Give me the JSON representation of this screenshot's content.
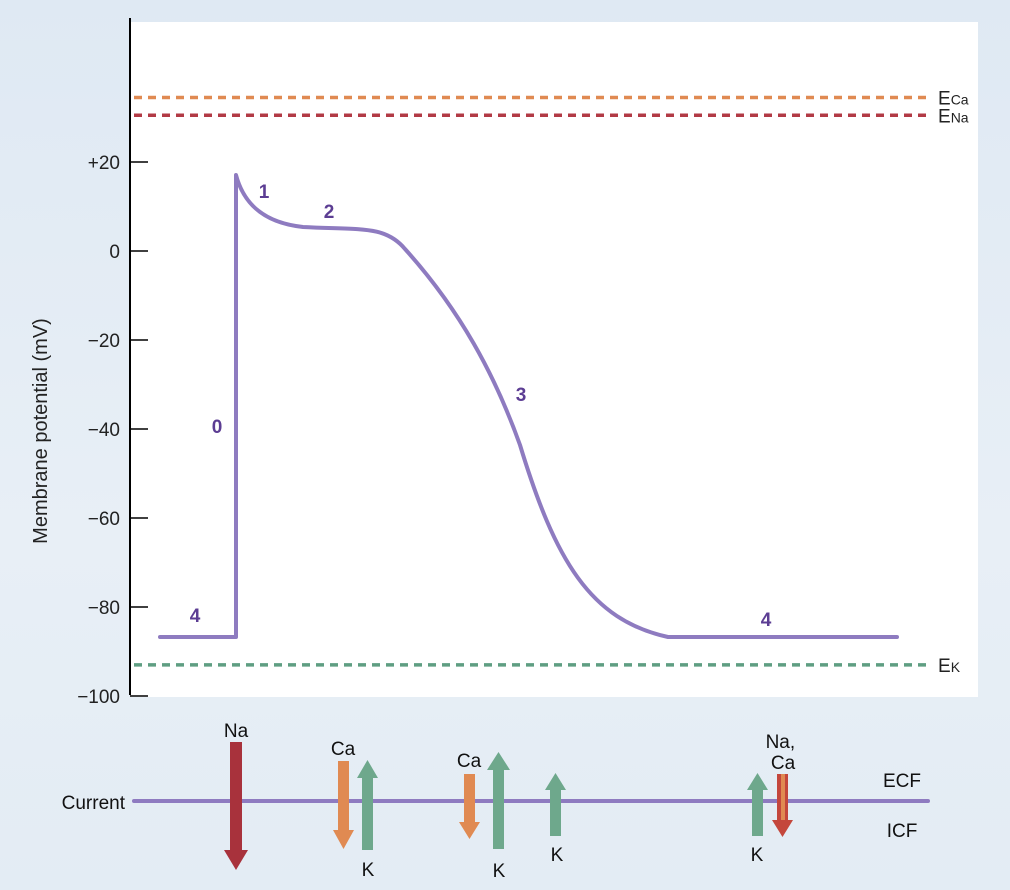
{
  "chart_data": {
    "type": "line",
    "title": "",
    "xlabel": "",
    "ylabel": "Membrane potential (mV)",
    "ylim": [
      -100,
      37
    ],
    "grid": false,
    "y_ticks": [
      {
        "value": 20,
        "label": "+20"
      },
      {
        "value": 0,
        "label": "0"
      },
      {
        "value": -20,
        "label": "−20"
      },
      {
        "value": -40,
        "label": "−40"
      },
      {
        "value": -60,
        "label": "−60"
      },
      {
        "value": -80,
        "label": "−80"
      },
      {
        "value": -100,
        "label": "−100"
      }
    ],
    "equilibrium_potentials": [
      {
        "label": "E",
        "sub": "Ca",
        "value": 34.5,
        "color": "#e08a52"
      },
      {
        "label": "E",
        "sub": "Na",
        "value": 30.5,
        "color": "#b23a45"
      },
      {
        "label": "E",
        "sub": "K",
        "value": -93,
        "color": "#5f9e82"
      }
    ],
    "phase_labels": [
      "0",
      "1",
      "2",
      "3",
      "4",
      "4"
    ],
    "current_panel": {
      "label": "Current",
      "ecf_label": "ECF",
      "icf_label": "ICF",
      "ion_labels": {
        "na": "Na",
        "ca1": "Ca",
        "k1": "K",
        "ca2": "Ca",
        "k2": "K",
        "k3": "K",
        "k4": "K",
        "naca": "Na,\nCa"
      }
    },
    "colors": {
      "curve": "#8e7bc0",
      "na": "#a8323c",
      "ca": "#e08a52",
      "k": "#6ea88c",
      "phase_text": "#5c3d93"
    }
  }
}
